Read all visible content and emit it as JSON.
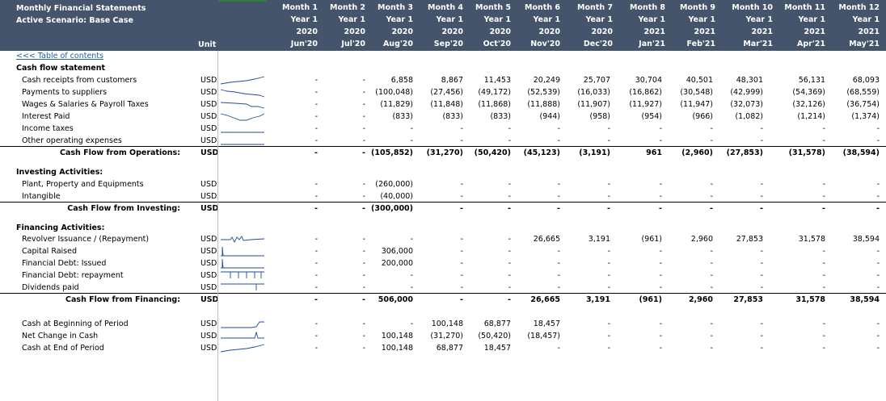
{
  "header": {
    "title": "Monthly Financial Statements",
    "scenario": "Active Scenario: Base Case",
    "unit_label": "Unit",
    "months": [
      {
        "m": "Month 1",
        "y": "Year 1",
        "yr": "2020",
        "d": "Jun'20"
      },
      {
        "m": "Month 2",
        "y": "Year 1",
        "yr": "2020",
        "d": "Jul'20"
      },
      {
        "m": "Month 3",
        "y": "Year 1",
        "yr": "2020",
        "d": "Aug'20"
      },
      {
        "m": "Month 4",
        "y": "Year 1",
        "yr": "2020",
        "d": "Sep'20"
      },
      {
        "m": "Month 5",
        "y": "Year 1",
        "yr": "2020",
        "d": "Oct'20"
      },
      {
        "m": "Month 6",
        "y": "Year 1",
        "yr": "2020",
        "d": "Nov'20"
      },
      {
        "m": "Month 7",
        "y": "Year 1",
        "yr": "2020",
        "d": "Dec'20"
      },
      {
        "m": "Month 8",
        "y": "Year 1",
        "yr": "2021",
        "d": "Jan'21"
      },
      {
        "m": "Month 9",
        "y": "Year 1",
        "yr": "2021",
        "d": "Feb'21"
      },
      {
        "m": "Month 10",
        "y": "Year 1",
        "yr": "2021",
        "d": "Mar'21"
      },
      {
        "m": "Month 11",
        "y": "Year 1",
        "yr": "2021",
        "d": "Apr'21"
      },
      {
        "m": "Month 12",
        "y": "Year 1",
        "yr": "2021",
        "d": "May'21"
      }
    ]
  },
  "toc_link": "<<< Table of contents",
  "section_title": "Cash flow statement",
  "rows": [
    {
      "label": "Cash receipts from customers",
      "unit": "USD",
      "spark": "up",
      "vals": [
        "-",
        "-",
        "6,858",
        "8,867",
        "11,453",
        "20,249",
        "25,707",
        "30,704",
        "40,501",
        "48,301",
        "56,131",
        "68,093"
      ]
    },
    {
      "label": "Payments to suppliers",
      "unit": "USD",
      "spark": "down",
      "vals": [
        "-",
        "-",
        "(100,048)",
        "(27,456)",
        "(49,172)",
        "(52,539)",
        "(16,033)",
        "(16,862)",
        "(30,548)",
        "(42,999)",
        "(54,369)",
        "(68,559)"
      ]
    },
    {
      "label": "Wages & Salaries & Payroll Taxes",
      "unit": "USD",
      "spark": "down2",
      "vals": [
        "-",
        "-",
        "(11,829)",
        "(11,848)",
        "(11,868)",
        "(11,888)",
        "(11,907)",
        "(11,927)",
        "(11,947)",
        "(32,073)",
        "(32,126)",
        "(36,754)"
      ]
    },
    {
      "label": "Interest Paid",
      "unit": "USD",
      "spark": "dip",
      "vals": [
        "-",
        "-",
        "(833)",
        "(833)",
        "(833)",
        "(944)",
        "(958)",
        "(954)",
        "(966)",
        "(1,082)",
        "(1,214)",
        "(1,374)"
      ]
    },
    {
      "label": "Income taxes",
      "unit": "USD",
      "spark": "flat",
      "vals": [
        "-",
        "-",
        "-",
        "-",
        "-",
        "-",
        "-",
        "-",
        "-",
        "-",
        "-",
        "-"
      ]
    },
    {
      "label": "Other operating expenses",
      "unit": "USD",
      "spark": "flat",
      "vals": [
        "-",
        "-",
        "-",
        "-",
        "-",
        "-",
        "-",
        "-",
        "-",
        "-",
        "-",
        "-"
      ]
    },
    {
      "label": "Cash Flow from Operations:",
      "unit": "USD",
      "total": true,
      "vals": [
        "-",
        "-",
        "(105,852)",
        "(31,270)",
        "(50,420)",
        "(45,123)",
        "(3,191)",
        "961",
        "(2,960)",
        "(27,853)",
        "(31,578)",
        "(38,594)"
      ]
    },
    {
      "label": "Investing Activities:",
      "section": true
    },
    {
      "label": "Plant, Property and Equipments",
      "unit": "USD",
      "vals": [
        "-",
        "-",
        "(260,000)",
        "-",
        "-",
        "-",
        "-",
        "-",
        "-",
        "-",
        "-",
        "-"
      ]
    },
    {
      "label": "Intangible",
      "unit": "USD",
      "vals": [
        "-",
        "-",
        "(40,000)",
        "-",
        "-",
        "-",
        "-",
        "-",
        "-",
        "-",
        "-",
        "-"
      ]
    },
    {
      "label": "Cash Flow from Investing:",
      "unit": "USD",
      "total": true,
      "vals": [
        "-",
        "-",
        "(300,000)",
        "-",
        "-",
        "-",
        "-",
        "-",
        "-",
        "-",
        "-",
        "-"
      ]
    },
    {
      "label": "Financing Activities:",
      "section": true
    },
    {
      "label": "Revolver Issuance / (Repayment)",
      "unit": "USD",
      "spark": "wave",
      "vals": [
        "-",
        "-",
        "-",
        "-",
        "-",
        "26,665",
        "3,191",
        "(961)",
        "2,960",
        "27,853",
        "31,578",
        "38,594"
      ]
    },
    {
      "label": "Capital Raised",
      "unit": "USD",
      "spark": "spike",
      "vals": [
        "-",
        "-",
        "306,000",
        "-",
        "-",
        "-",
        "-",
        "-",
        "-",
        "-",
        "-",
        "-"
      ]
    },
    {
      "label": "Financial Debt: Issued",
      "unit": "USD",
      "spark": "spike",
      "vals": [
        "-",
        "-",
        "200,000",
        "-",
        "-",
        "-",
        "-",
        "-",
        "-",
        "-",
        "-",
        "-"
      ]
    },
    {
      "label": "Financial Debt: repayment",
      "unit": "USD",
      "spark": "comb",
      "vals": [
        "-",
        "-",
        "-",
        "-",
        "-",
        "-",
        "-",
        "-",
        "-",
        "-",
        "-",
        "-"
      ]
    },
    {
      "label": "Dividends paid",
      "unit": "USD",
      "spark": "tick",
      "vals": [
        "-",
        "-",
        "-",
        "-",
        "-",
        "-",
        "-",
        "-",
        "-",
        "-",
        "-",
        "-"
      ]
    },
    {
      "label": "Cash Flow from Financing:",
      "unit": "USD",
      "total": true,
      "vals": [
        "-",
        "-",
        "506,000",
        "-",
        "-",
        "26,665",
        "3,191",
        "(961)",
        "2,960",
        "27,853",
        "31,578",
        "38,594"
      ]
    },
    {
      "label": "Cash at Beginning of Period",
      "unit": "USD",
      "spark": "flatend",
      "vals": [
        "-",
        "-",
        "-",
        "100,148",
        "68,877",
        "18,457",
        "-",
        "-",
        "-",
        "-",
        "-",
        "-"
      ]
    },
    {
      "label": "Net Change in Cash",
      "unit": "USD",
      "spark": "spikedown",
      "vals": [
        "-",
        "-",
        "100,148",
        "(31,270)",
        "(50,420)",
        "(18,457)",
        "-",
        "-",
        "-",
        "-",
        "-",
        "-"
      ]
    },
    {
      "label": "Cash at End of Period",
      "unit": "USD",
      "spark": "up",
      "vals": [
        "-",
        "-",
        "100,148",
        "68,877",
        "18,457",
        "-",
        "-",
        "-",
        "-",
        "-",
        "-",
        "-"
      ]
    }
  ],
  "colors": {
    "header_bg": "#44546a",
    "link": "#1f5ea8",
    "spark": "#1f4e96"
  }
}
